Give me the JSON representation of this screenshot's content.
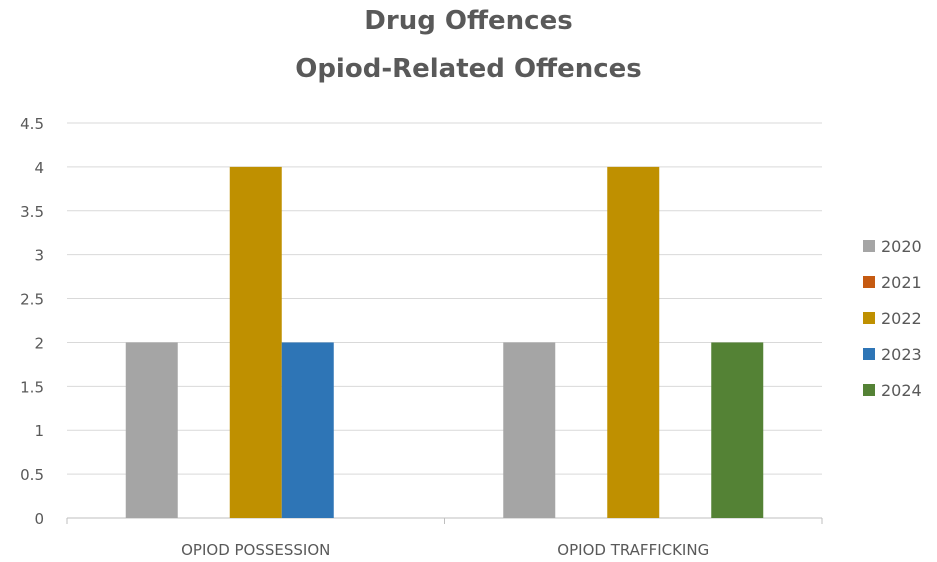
{
  "chart_data": {
    "type": "bar",
    "title": [
      "Drug Offences",
      "Opiod-Related Offences"
    ],
    "categories": [
      "OPIOD POSSESSION",
      "OPIOD TRAFFICKING"
    ],
    "series": [
      {
        "name": "2020",
        "color": "#a5a5a5",
        "values": [
          2,
          2
        ]
      },
      {
        "name": "2021",
        "color": "#c55a11",
        "values": [
          0,
          0
        ]
      },
      {
        "name": "2022",
        "color": "#bf9000",
        "values": [
          4,
          4
        ]
      },
      {
        "name": "2023",
        "color": "#2e75b6",
        "values": [
          2,
          0
        ]
      },
      {
        "name": "2024",
        "color": "#548235",
        "values": [
          0,
          2
        ]
      }
    ],
    "ylim": [
      0,
      4.5
    ],
    "yticks": [
      "0",
      "0.5",
      "1",
      "1.5",
      "2",
      "2.5",
      "3",
      "3.5",
      "4",
      "4.5"
    ],
    "grid": true,
    "legend_position": "right"
  }
}
